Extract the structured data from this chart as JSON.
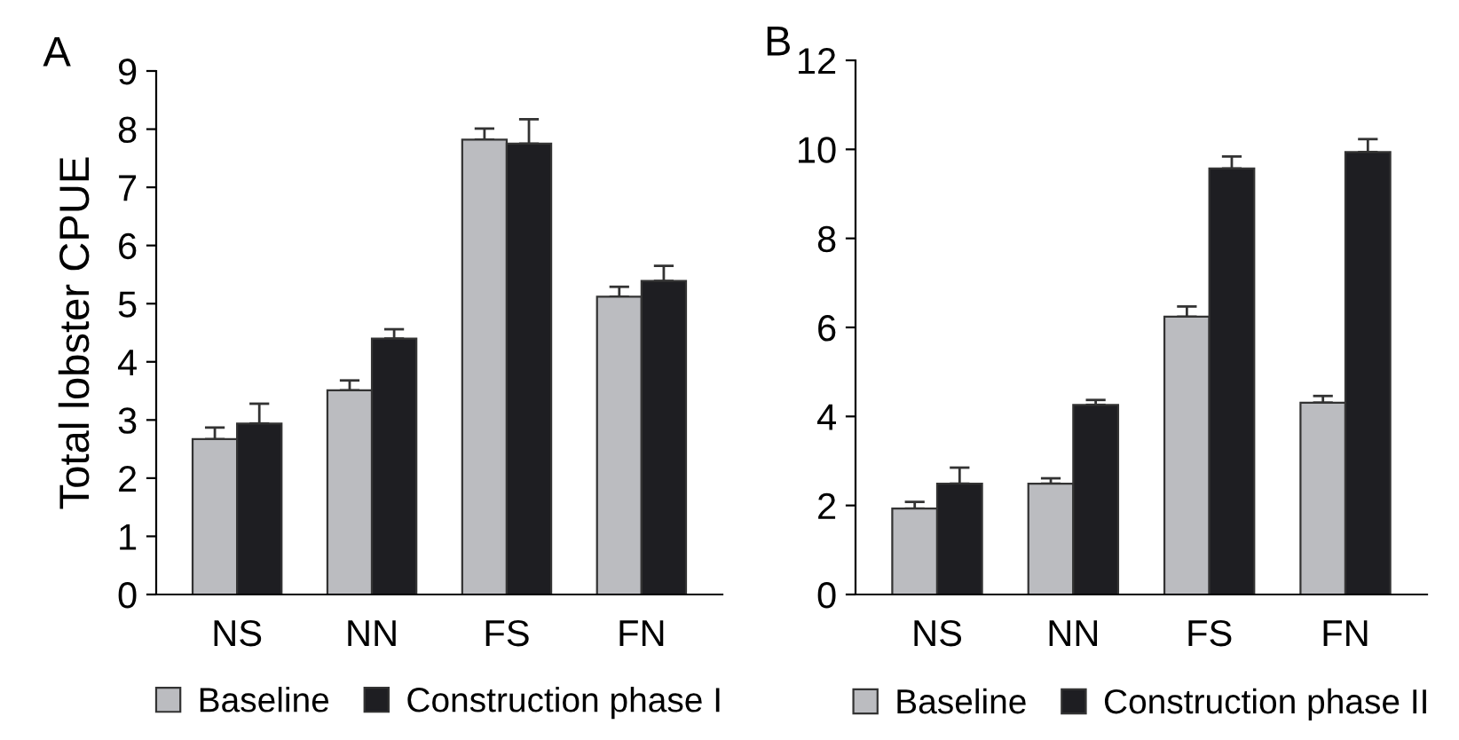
{
  "chart_data": [
    {
      "type": "bar",
      "title": "A",
      "ylabel": "Total lobster CPUE",
      "categories": [
        "NS",
        "NN",
        "FS",
        "FN"
      ],
      "series": [
        {
          "name": "Baseline",
          "color": "#bbbcc0",
          "values": [
            2.67,
            3.51,
            7.82,
            5.12
          ],
          "errors": [
            [
              2.67,
              2.87
            ],
            [
              3.51,
              3.68
            ],
            [
              7.82,
              8.01
            ],
            [
              5.12,
              5.29
            ]
          ]
        },
        {
          "name": "Construction phase I",
          "color": "#1e1e22",
          "values": [
            2.94,
            4.4,
            7.75,
            5.39
          ],
          "errors": [
            [
              2.94,
              3.28
            ],
            [
              4.4,
              4.56
            ],
            [
              7.75,
              8.17
            ],
            [
              5.39,
              5.65
            ]
          ]
        }
      ],
      "ylim": [
        0,
        9
      ],
      "yticks": [
        0,
        1,
        2,
        3,
        4,
        5,
        6,
        7,
        8,
        9
      ],
      "legend": "bottom",
      "grid": false
    },
    {
      "type": "bar",
      "title": "B",
      "categories": [
        "NS",
        "NN",
        "FS",
        "FN"
      ],
      "series": [
        {
          "name": "Baseline",
          "color": "#bbbcc0",
          "values": [
            1.93,
            2.49,
            6.24,
            4.31
          ],
          "errors": [
            [
              1.93,
              2.08
            ],
            [
              2.49,
              2.61
            ],
            [
              6.24,
              6.47
            ],
            [
              4.31,
              4.46
            ]
          ]
        },
        {
          "name": "Construction phase II",
          "color": "#1e1e22",
          "values": [
            2.49,
            4.26,
            9.57,
            9.94
          ],
          "errors": [
            [
              2.49,
              2.85
            ],
            [
              4.26,
              4.37
            ],
            [
              9.57,
              9.84
            ],
            [
              9.94,
              10.23
            ]
          ]
        }
      ],
      "ylim": [
        0,
        12
      ],
      "yticks": [
        0,
        2,
        4,
        6,
        8,
        10,
        12
      ],
      "legend": "bottom",
      "grid": false
    }
  ]
}
